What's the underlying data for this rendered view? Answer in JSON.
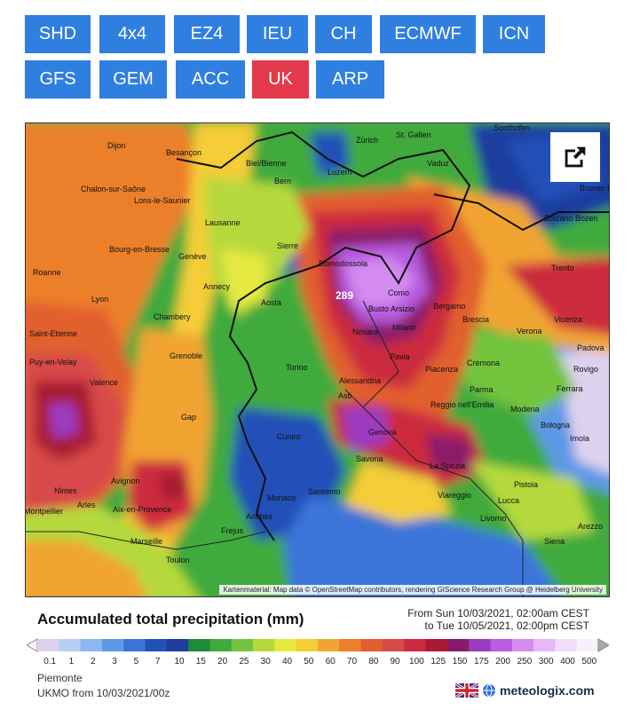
{
  "model_buttons": [
    {
      "label": "SHD",
      "active": false
    },
    {
      "label": "4x4",
      "active": false
    },
    {
      "label": "EZ4",
      "active": false
    },
    {
      "label": "IEU",
      "active": false
    },
    {
      "label": "CH",
      "active": false
    },
    {
      "label": "ECMWF",
      "active": false
    },
    {
      "label": "ICN",
      "active": false
    },
    {
      "label": "GFS",
      "active": false
    },
    {
      "label": "GEM",
      "active": false
    },
    {
      "label": "ACC",
      "active": false
    },
    {
      "label": "UK",
      "active": true
    },
    {
      "label": "ARP",
      "active": false
    }
  ],
  "colors": {
    "button": "#2f7fe0",
    "button_active": "#e23a4a"
  },
  "map": {
    "share_icon": "share-icon",
    "max_value_label": "289",
    "attribution": "Kartenmaterial: Map data © OpenStreetMap contributors, rendering GIScience Research Group @ Heidelberg University",
    "cities": [
      "Dijon",
      "Besançon",
      "Zürich",
      "St. Gallen",
      "Sonthofen",
      "Vaduz",
      "Biel/Bienne",
      "Luzern",
      "Bern",
      "Chalon-sur-Saône",
      "Lons-le-Saunier",
      "Bolzano Bozen",
      "Brunec Bruneck",
      "Lausanne",
      "Sierre",
      "Domodossola",
      "Bourg-en-Bresse",
      "Genève",
      "Trento",
      "Roanne",
      "Annecy",
      "Como",
      "Busto Arsizio",
      "Bergamo",
      "Lyon",
      "Chambery",
      "Aosta",
      "Novara",
      "Milano",
      "Brescia",
      "Vicenza",
      "Saint-Etienne",
      "Verona",
      "Padova",
      "Grenoble",
      "Pavia",
      "Cremona",
      "Rovigo",
      "Puy-en-Velay",
      "Valence",
      "Torino",
      "Alessandria",
      "Piacenza",
      "Parma",
      "Ferrara",
      "Asti",
      "Reggio nell'Emilia",
      "Modena",
      "Gap",
      "Bologna",
      "Imola",
      "Cuneo",
      "Genova",
      "Savona",
      "La Spezia",
      "Avignon",
      "Nimes",
      "Arles",
      "Aix-en-Provence",
      "Sanremo",
      "Monaco",
      "Antibes",
      "Frejus",
      "Pistoia",
      "Viareggio",
      "Lucca",
      "Arezzo",
      "Livorno",
      "Marseille",
      "Toulon",
      "Siena",
      "Montpellier"
    ]
  },
  "legend": {
    "title": "Accumulated total precipitation (mm)",
    "period_from": "From Sun 10/03/2021, 02:00am CEST",
    "period_to": "to Tue 10/05/2021, 02:00pm CEST",
    "scale_values": [
      "0.1",
      "1",
      "2",
      "3",
      "5",
      "7",
      "10",
      "15",
      "20",
      "25",
      "30",
      "40",
      "50",
      "60",
      "70",
      "80",
      "90",
      "100",
      "125",
      "150",
      "175",
      "200",
      "250",
      "300",
      "400",
      "500"
    ],
    "scale_colors": [
      "#dcd2ee",
      "#b9cdf3",
      "#8db7f0",
      "#5f98e6",
      "#3a74da",
      "#2250b8",
      "#1f3e9e",
      "#1f8a3a",
      "#3faa3c",
      "#72c43e",
      "#b5d93c",
      "#e6ea3f",
      "#f4cd37",
      "#f1a432",
      "#ec7f2c",
      "#e25e2f",
      "#d84a4a",
      "#cc2a3d",
      "#a81a33",
      "#8a1a6a",
      "#9c3ac0",
      "#b85ce0",
      "#d48cf0",
      "#e7b8f7",
      "#f1dcfb",
      "#f7f0fc"
    ]
  },
  "footer": {
    "region": "Piemonte",
    "run": "UKMO from 10/03/2021/00z",
    "flag_icon": "uk-flag-icon",
    "brand": "meteologix.com"
  }
}
